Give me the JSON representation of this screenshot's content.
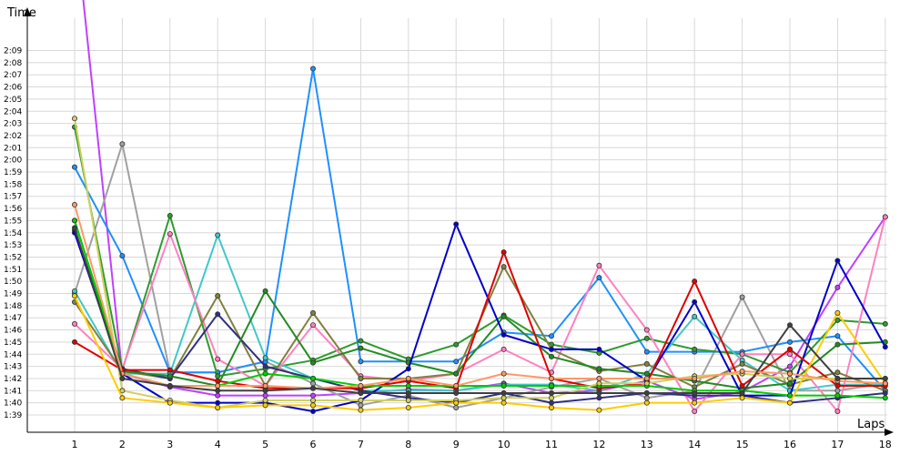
{
  "chart_data": {
    "type": "line",
    "xlabel": "Laps",
    "ylabel": "Time",
    "x": [
      1,
      2,
      3,
      4,
      5,
      6,
      7,
      8,
      9,
      10,
      11,
      12,
      13,
      14,
      15,
      16,
      17,
      18
    ],
    "ylim_seconds": [
      98,
      136
    ],
    "y_ticks": [
      "1:39",
      "1:40",
      "1:41",
      "1:42",
      "1:43",
      "1:44",
      "1:45",
      "1:46",
      "1:47",
      "1:48",
      "1:49",
      "1:50",
      "1:51",
      "1:52",
      "1:53",
      "1:54",
      "1:55",
      "1:56",
      "1:57",
      "1:58",
      "1:59",
      "2:00",
      "2:01",
      "2:02",
      "2:03",
      "2:04",
      "2:05",
      "2:06",
      "2:07",
      "2:08",
      "2:09"
    ],
    "grid": true,
    "series": [
      {
        "color": "#c040ff",
        "values": [
          140,
          102.4,
          101.3,
          100.6,
          100.6,
          100.6,
          100.8,
          101.1,
          101.0,
          101.6,
          100.8,
          101.0,
          101.8,
          100.3,
          100.9,
          103.0,
          109.5,
          115.3
        ]
      },
      {
        "color": "#a0a0a0",
        "values": [
          109.0,
          121.3,
          102.5,
          102.5,
          103.4,
          101.6,
          99.8,
          100.6,
          99.6,
          100.4,
          101.3,
          102.0,
          100.4,
          101.0,
          108.7,
          101.0,
          101.0,
          101.6
        ]
      },
      {
        "color": "#1e90ff",
        "values": [
          119.4,
          112.1,
          102.5,
          102.5,
          103.4,
          127.5,
          103.4,
          103.4,
          103.4,
          105.8,
          105.5,
          110.3,
          104.2,
          104.2,
          104.2,
          105.0,
          105.5,
          101.0
        ]
      },
      {
        "color": "#2e9b2e",
        "values": [
          122.7,
          102.7,
          115.4,
          102.2,
          102.8,
          103.5,
          105.1,
          103.6,
          104.8,
          107.2,
          104.8,
          104.1,
          105.3,
          104.4,
          104.0,
          102.5,
          106.8,
          106.5
        ]
      },
      {
        "color": "#40c8c8",
        "values": [
          109.2,
          102.4,
          102.4,
          113.8,
          103.7,
          102.0,
          101.0,
          101.0,
          101.0,
          101.5,
          101.5,
          101.0,
          102.4,
          107.1,
          103.5,
          101.0,
          101.5,
          101.5
        ]
      },
      {
        "color": "#ff80c0",
        "values": [
          106.5,
          102.8,
          113.9,
          103.6,
          101.4,
          106.4,
          102.2,
          101.8,
          102.4,
          104.4,
          102.5,
          111.3,
          106.0,
          99.3,
          104.0,
          104.0,
          99.3,
          115.3
        ]
      },
      {
        "color": "#808040",
        "values": [
          108.3,
          102.6,
          102.0,
          108.8,
          101.4,
          107.4,
          102.0,
          102.0,
          102.4,
          111.2,
          104.4,
          102.6,
          103.2,
          101.3,
          103.2,
          101.5,
          102.5,
          101.0
        ]
      },
      {
        "color": "#303080",
        "values": [
          114.2,
          102.8,
          102.0,
          107.3,
          103.0,
          102.0,
          101.0,
          100.4,
          100.0,
          100.8,
          100.0,
          100.4,
          100.8,
          100.6,
          100.6,
          100.0,
          100.4,
          100.8
        ]
      },
      {
        "color": "#228b22",
        "values": [
          115.0,
          102.6,
          102.2,
          101.4,
          109.2,
          103.3,
          104.5,
          103.3,
          102.4,
          107.1,
          103.8,
          102.8,
          102.4,
          101.8,
          101.2,
          101.6,
          104.8,
          105.0
        ]
      },
      {
        "color": "#0000cc",
        "values": [
          114.0,
          102.4,
          100.0,
          100.0,
          100.0,
          99.3,
          100.2,
          102.8,
          114.7,
          105.6,
          104.4,
          104.4,
          101.8,
          108.3,
          100.6,
          100.6,
          111.7,
          104.6
        ]
      },
      {
        "color": "#e00000",
        "values": [
          105.0,
          102.7,
          102.7,
          101.8,
          101.2,
          101.2,
          101.2,
          101.8,
          101.2,
          112.4,
          102.0,
          101.2,
          101.6,
          110.0,
          101.4,
          104.4,
          101.4,
          101.4
        ]
      },
      {
        "color": "#00cc00",
        "values": [
          115.0,
          102.4,
          101.4,
          101.4,
          102.4,
          102.0,
          101.4,
          101.4,
          101.4,
          101.4,
          101.4,
          101.4,
          101.4,
          101.0,
          101.0,
          100.6,
          100.6,
          100.4
        ]
      },
      {
        "color": "#d0d060",
        "values": [
          123.4,
          101.0,
          100.2,
          99.6,
          100.2,
          100.2,
          100.2,
          100.2,
          100.2,
          100.4,
          100.4,
          101.6,
          101.6,
          102.2,
          102.4,
          102.0,
          102.0,
          102.0
        ]
      },
      {
        "color": "#ffcc00",
        "values": [
          108.8,
          100.4,
          100.0,
          99.6,
          99.8,
          99.8,
          99.4,
          99.6,
          100.0,
          100.0,
          99.6,
          99.4,
          100.0,
          100.0,
          100.4,
          100.0,
          107.4,
          101.6
        ]
      },
      {
        "color": "#ff9966",
        "values": [
          116.3,
          102.4,
          101.4,
          101.4,
          101.4,
          101.2,
          101.4,
          102.0,
          101.4,
          102.4,
          102.0,
          102.0,
          102.0,
          102.0,
          102.6,
          102.4,
          101.8,
          101.6
        ]
      },
      {
        "color": "#404040",
        "values": [
          114.4,
          102.0,
          101.4,
          101.0,
          101.0,
          101.2,
          100.8,
          100.8,
          100.8,
          100.8,
          100.8,
          100.8,
          100.8,
          100.8,
          100.8,
          106.4,
          102.0,
          102.0
        ]
      }
    ]
  }
}
